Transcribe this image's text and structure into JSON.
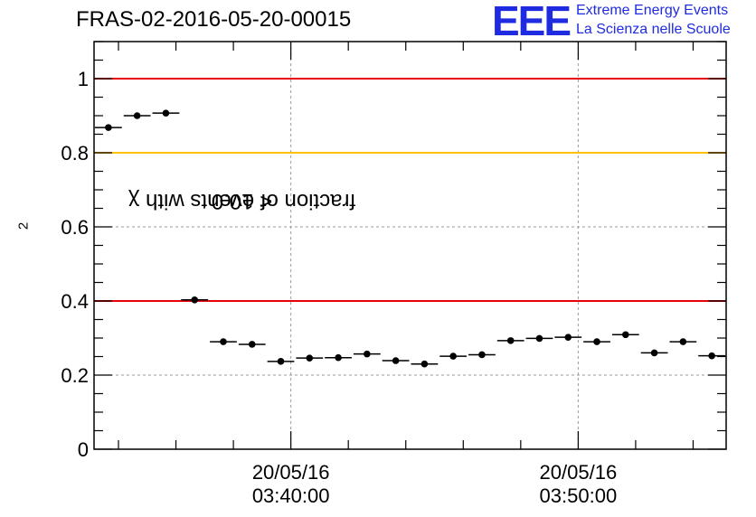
{
  "title": "FRAS-02-2016-05-20-00015",
  "logo": {
    "mark": "EEE",
    "line1": "Extreme Energy Events",
    "line2": "La Scienza nelle Scuole",
    "color": "#1f2be0"
  },
  "chart_data": {
    "type": "scatter",
    "ylabel_prefix": "fraction of events with χ",
    "ylabel_sup": "2",
    "ylabel_suffix": " < 10.0",
    "ylim": [
      0,
      1.1
    ],
    "yticks": [
      {
        "value": 0,
        "label": "0"
      },
      {
        "value": 0.2,
        "label": "0.2"
      },
      {
        "value": 0.4,
        "label": "0.4"
      },
      {
        "value": 0.6,
        "label": "0.6"
      },
      {
        "value": 0.8,
        "label": "0.8"
      },
      {
        "value": 1,
        "label": "1"
      }
    ],
    "xticks": [
      {
        "index": 6.85,
        "date": "20/05/16",
        "time": "03:40:00"
      },
      {
        "index": 16.85,
        "date": "20/05/16",
        "time": "03:50:00"
      }
    ],
    "n_bins": 22,
    "values": [
      0.868,
      0.9,
      0.907,
      0.403,
      0.29,
      0.283,
      0.237,
      0.246,
      0.247,
      0.257,
      0.239,
      0.23,
      0.251,
      0.255,
      0.293,
      0.299,
      0.302,
      0.29,
      0.309,
      0.26,
      0.29,
      0.252
    ],
    "reference_lines": [
      {
        "value": 1.0,
        "color": "#e8000b"
      },
      {
        "value": 0.8,
        "color": "#ffc000"
      },
      {
        "value": 0.4,
        "color": "#e8000b"
      }
    ],
    "grid": true,
    "marker_color": "#000000"
  }
}
